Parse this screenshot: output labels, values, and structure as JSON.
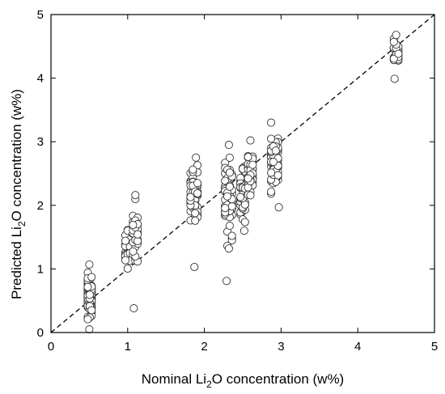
{
  "chart_data": {
    "type": "scatter",
    "title": "",
    "xlabel": {
      "pre": "Nominal Li",
      "sub": "2",
      "post": "O concentration (w%)"
    },
    "ylabel": {
      "pre": "Predicted Li",
      "sub": "2",
      "post": "O concentration (w%)"
    },
    "xlim": [
      0,
      5
    ],
    "ylim": [
      0,
      5
    ],
    "xticks": [
      "0",
      "1",
      "2",
      "3",
      "4",
      "5"
    ],
    "yticks": [
      "0",
      "1",
      "2",
      "3",
      "4",
      "5"
    ],
    "grid": false,
    "reference_line": {
      "style": "dashed",
      "from": [
        0,
        0
      ],
      "to": [
        5,
        5
      ]
    },
    "groups": [
      {
        "x": 0.5,
        "xs": [
          0.48,
          0.505,
          0.53
        ],
        "ymin": 0.05,
        "ymax": 1.07,
        "count": 90
      },
      {
        "x": 1.0,
        "xs": [
          0.97,
          1.0,
          1.03
        ],
        "ymin": 0.87,
        "ymax": 1.73,
        "count": 28
      },
      {
        "x": 1.1,
        "xs": [
          1.07,
          1.1,
          1.13
        ],
        "ymin": 0.98,
        "ymax": 2.16,
        "count": 30
      },
      {
        "x": 1.85,
        "xs": [
          1.82,
          1.85,
          1.88,
          1.91
        ],
        "ymin": 1.55,
        "ymax": 2.75,
        "count": 60
      },
      {
        "x": 2.3,
        "xs": [
          2.27,
          2.3,
          2.33,
          2.36
        ],
        "ymin": 1.32,
        "ymax": 2.95,
        "count": 70
      },
      {
        "x": 2.5,
        "xs": [
          2.47,
          2.5,
          2.53
        ],
        "ymin": 1.6,
        "ymax": 2.75,
        "count": 45
      },
      {
        "x": 2.6,
        "xs": [
          2.57,
          2.6,
          2.63
        ],
        "ymin": 1.95,
        "ymax": 3.02,
        "count": 40
      },
      {
        "x": 2.9,
        "xs": [
          2.87,
          2.9,
          2.93,
          2.96
        ],
        "ymin": 2.1,
        "ymax": 3.3,
        "count": 70
      },
      {
        "x": 4.5,
        "xs": [
          4.47,
          4.5,
          4.53
        ],
        "ymin": 4.1,
        "ymax": 4.68,
        "count": 28
      }
    ],
    "extra_points": [
      {
        "x": 0.5,
        "y": 0.05
      },
      {
        "x": 1.08,
        "y": 0.38
      },
      {
        "x": 1.87,
        "y": 1.03
      },
      {
        "x": 2.29,
        "y": 0.81
      },
      {
        "x": 2.32,
        "y": 1.32
      },
      {
        "x": 2.52,
        "y": 1.6
      },
      {
        "x": 2.97,
        "y": 1.97
      },
      {
        "x": 4.48,
        "y": 3.99
      },
      {
        "x": 2.87,
        "y": 3.3
      },
      {
        "x": 2.6,
        "y": 3.02
      },
      {
        "x": 2.32,
        "y": 2.95
      },
      {
        "x": 1.89,
        "y": 2.75
      },
      {
        "x": 1.1,
        "y": 2.16
      },
      {
        "x": 0.5,
        "y": 1.07
      },
      {
        "x": 4.5,
        "y": 4.68
      }
    ]
  }
}
